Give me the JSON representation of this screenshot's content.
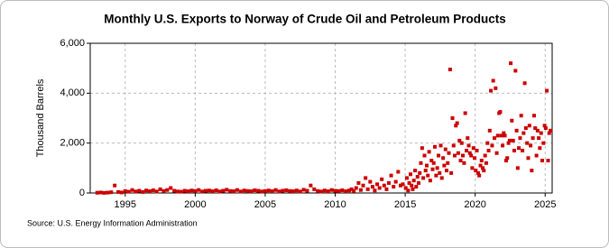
{
  "chart_data": {
    "type": "scatter",
    "title": "Monthly U.S. Exports to Norway of Crude Oil and Petroleum Products",
    "y_label": "Thousand Barrels",
    "source": "Source: U.S. Energy Information Administration",
    "color": "#cc0000",
    "grid": true,
    "xlim": [
      1992.5,
      2025.5
    ],
    "xticks": [
      1995,
      2000,
      2005,
      2010,
      2015,
      2020,
      2025
    ],
    "ylim": [
      0,
      6000
    ],
    "yticks": [
      0,
      {
        "value": 2000,
        "label": "2,000"
      },
      {
        "value": 4000,
        "label": "4,000"
      },
      {
        "value": 6000,
        "label": "6,000"
      }
    ],
    "x": [
      1993.0,
      1993.25,
      1993.5,
      1993.75,
      1994.0,
      1994.25,
      1994.5,
      1994.75,
      1995.0,
      1995.25,
      1995.5,
      1995.75,
      1996.0,
      1996.25,
      1996.5,
      1996.75,
      1997.0,
      1997.25,
      1997.5,
      1997.75,
      1998.0,
      1998.25,
      1998.5,
      1998.75,
      1999.0,
      1999.25,
      1999.5,
      1999.75,
      2000.0,
      2000.25,
      2000.5,
      2000.75,
      2001.0,
      2001.25,
      2001.5,
      2001.75,
      2002.0,
      2002.25,
      2002.5,
      2002.75,
      2003.0,
      2003.25,
      2003.5,
      2003.75,
      2004.0,
      2004.25,
      2004.5,
      2004.75,
      2005.0,
      2005.25,
      2005.5,
      2005.75,
      2006.0,
      2006.25,
      2006.5,
      2006.75,
      2007.0,
      2007.25,
      2007.5,
      2007.75,
      2008.0,
      2008.25,
      2008.5,
      2008.75,
      2009.0,
      2009.25,
      2009.5,
      2009.75,
      2010.0,
      2010.25,
      2010.5,
      2010.75,
      2011.0,
      2011.17,
      2011.33,
      2011.5,
      2011.67,
      2011.83,
      2012.0,
      2012.17,
      2012.33,
      2012.5,
      2012.67,
      2012.83,
      2013.0,
      2013.17,
      2013.33,
      2013.5,
      2013.67,
      2013.83,
      2014.0,
      2014.17,
      2014.33,
      2014.5,
      2014.67,
      2014.83,
      2015.04,
      2015.12,
      2015.21,
      2015.29,
      2015.38,
      2015.46,
      2015.54,
      2015.62,
      2015.71,
      2015.79,
      2015.88,
      2015.96,
      2016.04,
      2016.12,
      2016.21,
      2016.29,
      2016.38,
      2016.46,
      2016.54,
      2016.62,
      2016.71,
      2016.79,
      2016.88,
      2016.96,
      2017.04,
      2017.12,
      2017.21,
      2017.29,
      2017.38,
      2017.46,
      2017.54,
      2017.62,
      2017.71,
      2017.79,
      2017.88,
      2017.96,
      2018.04,
      2018.12,
      2018.21,
      2018.29,
      2018.38,
      2018.46,
      2018.54,
      2018.62,
      2018.71,
      2018.79,
      2018.88,
      2018.96,
      2019.04,
      2019.12,
      2019.21,
      2019.29,
      2019.38,
      2019.46,
      2019.54,
      2019.62,
      2019.71,
      2019.79,
      2019.88,
      2019.96,
      2020.04,
      2020.12,
      2020.21,
      2020.29,
      2020.38,
      2020.46,
      2020.54,
      2020.62,
      2020.71,
      2020.79,
      2020.88,
      2020.96,
      2021.04,
      2021.12,
      2021.21,
      2021.29,
      2021.38,
      2021.46,
      2021.54,
      2021.62,
      2021.71,
      2021.79,
      2021.88,
      2021.96,
      2022.04,
      2022.12,
      2022.21,
      2022.29,
      2022.38,
      2022.46,
      2022.54,
      2022.62,
      2022.71,
      2022.79,
      2022.88,
      2022.96,
      2023.04,
      2023.12,
      2023.21,
      2023.29,
      2023.38,
      2023.46,
      2023.54,
      2023.62,
      2023.71,
      2023.79,
      2023.88,
      2023.96,
      2024.04,
      2024.12,
      2024.21,
      2024.29,
      2024.38,
      2024.46,
      2024.54,
      2024.62,
      2024.71,
      2024.79,
      2024.88,
      2024.96,
      2025.04,
      2025.12,
      2025.21,
      2025.29,
      2025.38
    ],
    "values": [
      10,
      20,
      5,
      15,
      30,
      300,
      40,
      20,
      80,
      50,
      120,
      60,
      90,
      40,
      100,
      70,
      110,
      60,
      150,
      80,
      120,
      200,
      90,
      60,
      50,
      90,
      70,
      100,
      80,
      120,
      60,
      90,
      100,
      70,
      110,
      60,
      90,
      130,
      80,
      70,
      120,
      60,
      100,
      80,
      70,
      110,
      90,
      60,
      80,
      100,
      70,
      120,
      60,
      90,
      110,
      80,
      70,
      100,
      60,
      130,
      90,
      300,
      150,
      80,
      60,
      100,
      70,
      120,
      90,
      80,
      110,
      70,
      100,
      150,
      80,
      200,
      400,
      120,
      300,
      600,
      150,
      450,
      250,
      100,
      350,
      200,
      550,
      300,
      150,
      400,
      700,
      250,
      450,
      850,
      300,
      350,
      200,
      600,
      100,
      400,
      750,
      300,
      150,
      500,
      900,
      250,
      650,
      400,
      800,
      1200,
      1800,
      600,
      1500,
      900,
      1100,
      700,
      1650,
      500,
      1300,
      950,
      1200,
      1850,
      700,
      1000,
      1500,
      800,
      1900,
      600,
      1400,
      1100,
      1750,
      900,
      1200,
      1600,
      4950,
      800,
      3000,
      1900,
      1500,
      2700,
      2800,
      1600,
      2100,
      1300,
      2000,
      1500,
      1200,
      3200,
      1700,
      2200,
      1900,
      1600,
      1500,
      1000,
      1800,
      1400,
      900,
      1700,
      800,
      700,
      1100,
      1300,
      1000,
      900,
      1500,
      1200,
      2000,
      1700,
      2500,
      4100,
      1900,
      4500,
      2200,
      4200,
      1600,
      2300,
      3200,
      3250,
      2300,
      1900,
      2400,
      2300,
      1300,
      1400,
      2000,
      2100,
      5200,
      2900,
      2100,
      1700,
      4900,
      2500,
      1000,
      1800,
      2200,
      3100,
      1700,
      2400,
      4400,
      2600,
      2000,
      1400,
      2700,
      1900,
      900,
      2200,
      3100,
      2600,
      1500,
      2500,
      2200,
      1800,
      2400,
      1300,
      2000,
      2700,
      2600,
      4100,
      1300,
      2400,
      2500
    ]
  }
}
